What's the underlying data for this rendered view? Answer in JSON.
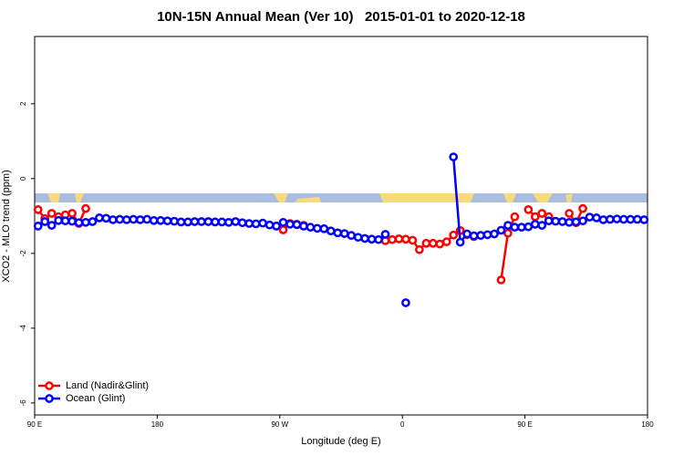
{
  "chart_data": {
    "type": "line",
    "title": "10N-15N Annual Mean (Ver 10)   2015-01-01 to 2020-12-18",
    "x_label": "Longitude (deg E)",
    "y_label": "XCO2 - MLO trend (ppm)",
    "xlim": [
      90,
      540
    ],
    "xticks": [
      {
        "value": 90,
        "label": "90 E"
      },
      {
        "value": 180,
        "label": "180"
      },
      {
        "value": 270,
        "label": "90 W"
      },
      {
        "value": 360,
        "label": "0"
      },
      {
        "value": 450,
        "label": "90 E"
      },
      {
        "value": 540,
        "label": "180"
      }
    ],
    "ylim": [
      -6.32,
      3.8
    ],
    "yticks": [
      -6,
      -4,
      -2,
      0,
      2
    ],
    "legend": "bottom-left",
    "x": [
      92.5,
      97.5,
      102.5,
      107.5,
      112.5,
      117.5,
      122.5,
      127.5,
      132.5,
      137.5,
      142.5,
      147.5,
      152.5,
      157.5,
      162.5,
      167.5,
      172.5,
      177.5,
      182.5,
      187.5,
      192.5,
      197.5,
      202.5,
      207.5,
      212.5,
      217.5,
      222.5,
      227.5,
      232.5,
      237.5,
      242.5,
      247.5,
      252.5,
      257.5,
      262.5,
      267.5,
      272.5,
      277.5,
      282.5,
      287.5,
      292.5,
      297.5,
      302.5,
      307.5,
      312.5,
      317.5,
      322.5,
      327.5,
      332.5,
      337.5,
      342.5,
      347.5,
      352.5,
      357.5,
      362.5,
      367.5,
      372.5,
      377.5,
      382.5,
      387.5,
      392.5,
      397.5,
      402.5,
      407.5,
      412.5,
      417.5,
      422.5,
      427.5,
      432.5,
      437.5,
      442.5,
      447.5,
      452.5,
      457.5,
      462.5,
      467.5,
      472.5,
      477.5,
      482.5,
      487.5,
      492.5,
      497.5,
      502.5,
      507.5,
      512.5,
      517.5,
      522.5,
      527.5,
      532.5,
      537.5
    ],
    "series": [
      {
        "name": "Land (Nadir&Glint)",
        "color": "#ff0000",
        "values": [
          -0.83,
          -1.07,
          -0.93,
          -1.02,
          -0.97,
          -0.93,
          -1.2,
          -0.8,
          null,
          null,
          null,
          null,
          null,
          null,
          null,
          null,
          null,
          null,
          null,
          null,
          null,
          null,
          null,
          null,
          null,
          null,
          null,
          null,
          null,
          null,
          null,
          null,
          null,
          null,
          null,
          -1.27,
          -1.37,
          -1.2,
          -1.22,
          -1.25,
          null,
          null,
          null,
          null,
          null,
          null,
          null,
          null,
          null,
          null,
          null,
          -1.66,
          -1.63,
          -1.61,
          -1.62,
          -1.65,
          -1.9,
          -1.73,
          -1.73,
          -1.75,
          -1.69,
          -1.51,
          -1.39,
          -1.5,
          -1.55,
          null,
          null,
          null,
          -2.71,
          -1.46,
          -1.02,
          null,
          -0.83,
          -1.02,
          -0.93,
          -1.02,
          null,
          null,
          -0.93,
          -1.18,
          -0.8,
          null,
          null,
          null,
          null,
          null,
          null,
          null,
          null,
          null
        ]
      },
      {
        "name": "Ocean (Glint)",
        "color": "#0000ff",
        "values": [
          -1.27,
          -1.15,
          -1.25,
          -1.12,
          -1.13,
          -1.14,
          -1.18,
          -1.17,
          -1.15,
          -1.05,
          -1.06,
          -1.1,
          -1.09,
          -1.1,
          -1.09,
          -1.1,
          -1.09,
          -1.12,
          -1.12,
          -1.13,
          -1.14,
          -1.16,
          -1.16,
          -1.15,
          -1.15,
          -1.15,
          -1.16,
          -1.16,
          -1.17,
          -1.15,
          -1.18,
          -1.2,
          -1.21,
          -1.19,
          -1.24,
          -1.27,
          -1.17,
          -1.22,
          -1.23,
          -1.27,
          -1.3,
          -1.33,
          -1.34,
          -1.4,
          -1.45,
          -1.47,
          -1.52,
          -1.57,
          -1.6,
          -1.62,
          -1.63,
          -1.49,
          null,
          null,
          -3.32,
          null,
          null,
          null,
          null,
          null,
          null,
          0.58,
          -1.7,
          -1.48,
          -1.53,
          -1.52,
          -1.5,
          -1.48,
          -1.38,
          -1.25,
          -1.3,
          -1.3,
          -1.29,
          -1.22,
          -1.25,
          -1.13,
          -1.14,
          -1.15,
          -1.17,
          -1.16,
          -1.13,
          -1.03,
          -1.05,
          -1.1,
          -1.09,
          -1.08,
          -1.09,
          -1.09,
          -1.09,
          -1.1
        ]
      }
    ]
  }
}
